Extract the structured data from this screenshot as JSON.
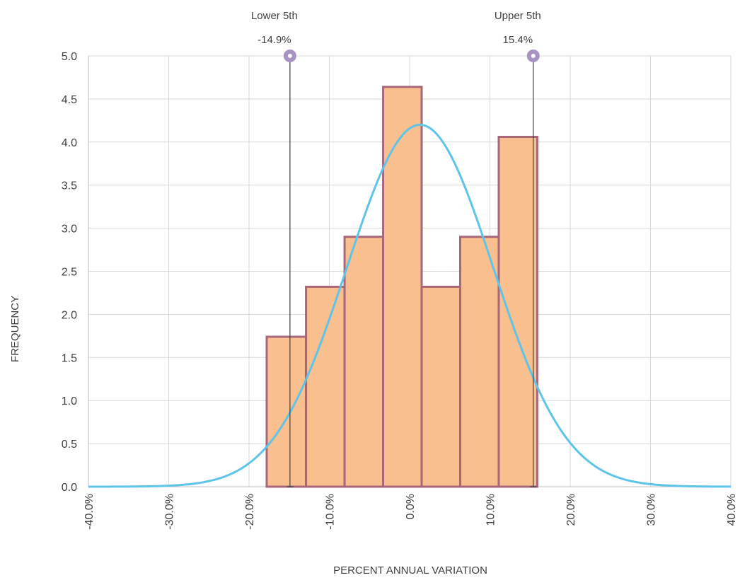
{
  "chart_data": {
    "type": "bar",
    "subtype": "histogram-with-normal-curve",
    "xlabel": "PERCENT ANNUAL VARIATION",
    "ylabel": "FREQUENCY",
    "xlim": [
      -40,
      40
    ],
    "ylim": [
      0,
      5
    ],
    "x_ticks": [
      -40,
      -30,
      -20,
      -10,
      0,
      10,
      20,
      30,
      40
    ],
    "x_tick_labels": [
      "-40.0%",
      "-30.0%",
      "-20.0%",
      "-10.0%",
      "0.0%",
      "10.0%",
      "20.0%",
      "30.0%",
      "40.0%"
    ],
    "y_ticks": [
      0,
      0.5,
      1,
      1.5,
      2,
      2.5,
      3,
      3.5,
      4,
      4.5,
      5
    ],
    "y_tick_labels": [
      "0.0",
      "0.5",
      "1.0",
      "1.5",
      "2.0",
      "2.5",
      "3.0",
      "3.5",
      "4.0",
      "4.5",
      "5.0"
    ],
    "grid": true,
    "bins": [
      {
        "x0": -17.8,
        "x1": -12.9,
        "value": 1.74
      },
      {
        "x0": -12.9,
        "x1": -8.1,
        "value": 2.32
      },
      {
        "x0": -8.1,
        "x1": -3.3,
        "value": 2.9
      },
      {
        "x0": -3.3,
        "x1": 1.5,
        "value": 4.64
      },
      {
        "x0": 1.5,
        "x1": 6.3,
        "value": 2.32
      },
      {
        "x0": 6.3,
        "x1": 11.1,
        "value": 2.9
      },
      {
        "x0": 11.1,
        "x1": 15.9,
        "value": 4.06
      }
    ],
    "normal_curve": {
      "mean": 1.3,
      "sd": 9.1,
      "peak": 4.2
    },
    "markers": [
      {
        "label": "Lower 5th",
        "value_label": "-14.9%",
        "x": -14.9
      },
      {
        "label": "Upper 5th",
        "value_label": "15.4%",
        "x": 15.4
      }
    ],
    "colors": {
      "bar_fill": "#f9bf8f",
      "bar_stroke": "#a8687a",
      "curve": "#5ec4e8",
      "marker_line": "#404040",
      "marker_dot": "#a992c6",
      "grid": "#d9d9d9"
    }
  }
}
